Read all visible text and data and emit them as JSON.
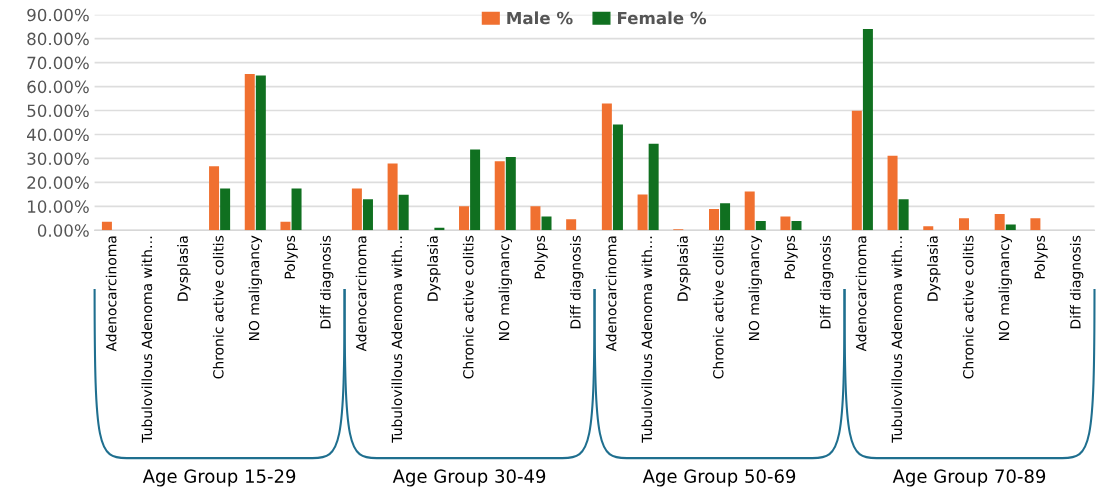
{
  "chart_data": {
    "type": "bar",
    "categories": [
      "Adenocarcinoma",
      "Tubulovillous Adenoma with…",
      "Dysplasia",
      "Chronic active colitis",
      "NO malignancy",
      "Polyps",
      "Diff diagnosis",
      "Adenocarcinoma",
      "Tubulovillous Adenoma with…",
      "Dysplasia",
      "Chronic active colitis",
      "NO malignancy",
      "Polyps",
      "Diff diagnosis",
      "Adenocarcinoma",
      "Tubulovillous Adenoma with…",
      "Dysplasia",
      "Chronic active colitis",
      "NO malignancy",
      "Polyps",
      "Diff diagnosis",
      "Adenocarcinoma",
      "Tubulovillous Adenoma with…",
      "Dysplasia",
      "Chronic active colitis",
      "NO malignancy",
      "Polyps",
      "Diff diagnosis"
    ],
    "series": [
      {
        "name": "Male %",
        "color": "#f07030",
        "values": [
          3.6,
          0,
          0,
          26.7,
          65.2,
          3.6,
          0,
          17.4,
          27.9,
          0,
          10.0,
          28.8,
          10.0,
          4.6,
          52.9,
          14.9,
          0.4,
          8.9,
          16.2,
          5.8,
          0,
          49.9,
          31.1,
          1.7,
          5.0,
          6.8,
          5.0,
          0
        ]
      },
      {
        "name": "Female %",
        "color": "#107020",
        "values": [
          0,
          0,
          0,
          17.4,
          64.6,
          17.4,
          0,
          13.0,
          14.8,
          1.1,
          33.7,
          30.6,
          5.8,
          0,
          44.2,
          36.1,
          0,
          11.3,
          3.9,
          3.9,
          0,
          84.0,
          13.0,
          0,
          0,
          2.4,
          0,
          0
        ]
      }
    ],
    "ylim": [
      0,
      90
    ],
    "yticks": [
      {
        "value": 0,
        "label": "0.00%"
      },
      {
        "value": 10,
        "label": "10.00%"
      },
      {
        "value": 20,
        "label": "20.00%"
      },
      {
        "value": 30,
        "label": "30.00%"
      },
      {
        "value": 40,
        "label": "40.00%"
      },
      {
        "value": 50,
        "label": "50.00%"
      },
      {
        "value": 60,
        "label": "60.00%"
      },
      {
        "value": 70,
        "label": "70.00%"
      },
      {
        "value": 80,
        "label": "80.00%"
      },
      {
        "value": 90,
        "label": "90.00%"
      }
    ],
    "annotations": [
      "Age Group 15-29",
      "Age Group 30-49",
      "Age Group 50-69",
      "Age Group 70-89"
    ],
    "grid": "y",
    "legend": "top"
  }
}
